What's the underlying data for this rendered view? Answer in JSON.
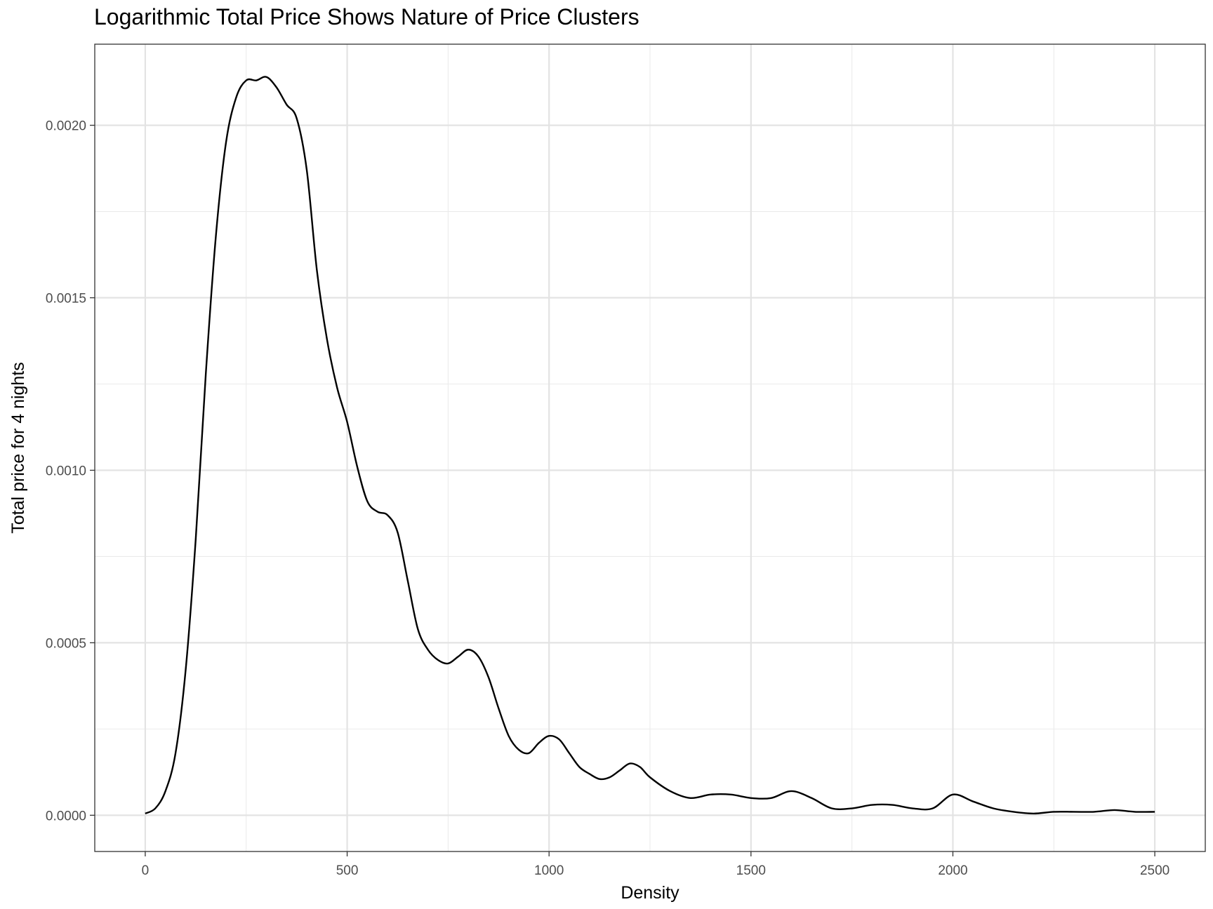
{
  "chart_data": {
    "type": "line",
    "title": "Logarithmic Total Price Shows Nature of Price Clusters",
    "xlabel": "Density",
    "ylabel": "Total price for 4 nights",
    "xlim": [
      -125,
      2625
    ],
    "ylim": [
      -0.000105,
      0.002235
    ],
    "x_ticks": [
      0,
      500,
      1000,
      1500,
      2000,
      2500
    ],
    "x_tick_labels": [
      "0",
      "500",
      "1000",
      "1500",
      "2000",
      "2500"
    ],
    "y_ticks": [
      0,
      0.0005,
      0.001,
      0.0015,
      0.002
    ],
    "y_tick_labels": [
      "0.0000",
      "0.0005",
      "0.0010",
      "0.0015",
      "0.0020"
    ],
    "grid": true,
    "line_color": "#000000",
    "series": [
      {
        "x": [
          0,
          25,
          50,
          75,
          100,
          125,
          150,
          175,
          200,
          225,
          250,
          275,
          300,
          325,
          350,
          375,
          400,
          425,
          450,
          475,
          500,
          525,
          550,
          575,
          600,
          625,
          650,
          675,
          700,
          725,
          750,
          775,
          800,
          825,
          850,
          875,
          900,
          925,
          950,
          975,
          1000,
          1025,
          1050,
          1075,
          1100,
          1125,
          1150,
          1175,
          1200,
          1225,
          1250,
          1300,
          1350,
          1400,
          1450,
          1500,
          1550,
          1600,
          1650,
          1700,
          1750,
          1800,
          1850,
          1900,
          1950,
          2000,
          2050,
          2100,
          2150,
          2200,
          2250,
          2300,
          2350,
          2400,
          2450,
          2500
        ],
        "y": [
          5e-06,
          2e-05,
          7e-05,
          0.00018,
          0.00042,
          0.0008,
          0.00128,
          0.00168,
          0.00195,
          0.00208,
          0.00213,
          0.00213,
          0.00214,
          0.00211,
          0.00206,
          0.00202,
          0.00187,
          0.00158,
          0.00138,
          0.00124,
          0.00114,
          0.00101,
          0.00091,
          0.00088,
          0.00087,
          0.00082,
          0.00068,
          0.00054,
          0.00048,
          0.00045,
          0.00044,
          0.00046,
          0.00048,
          0.00046,
          0.0004,
          0.00031,
          0.00023,
          0.00019,
          0.00018,
          0.00021,
          0.00023,
          0.00022,
          0.00018,
          0.00014,
          0.00012,
          0.000105,
          0.00011,
          0.00013,
          0.00015,
          0.00014,
          0.00011,
          7e-05,
          5e-05,
          6e-05,
          6e-05,
          5e-05,
          5e-05,
          7e-05,
          5e-05,
          2e-05,
          2e-05,
          3e-05,
          3e-05,
          2e-05,
          2e-05,
          6e-05,
          4e-05,
          2e-05,
          1e-05,
          5e-06,
          1e-05,
          1e-05,
          1e-05,
          1.5e-05,
          1e-05,
          1e-05
        ]
      }
    ]
  }
}
